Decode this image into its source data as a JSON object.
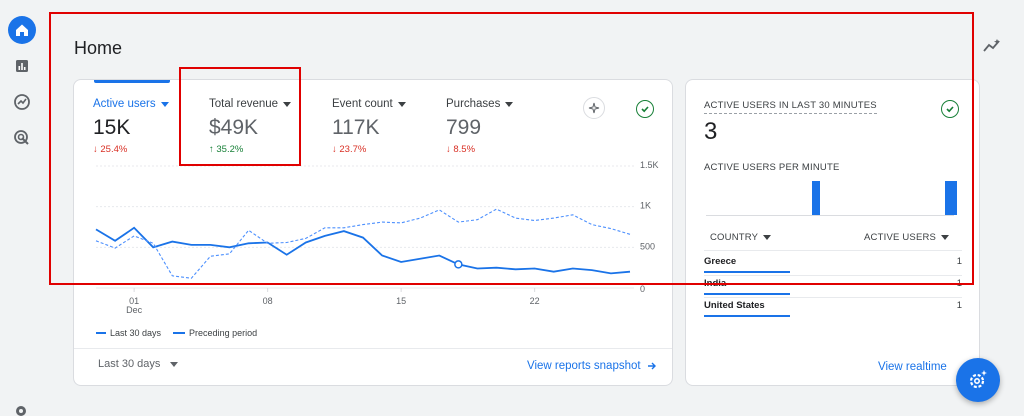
{
  "page": {
    "title": "Home"
  },
  "metrics": [
    {
      "label": "Active users",
      "value": "15K",
      "change": "↓ 25.4%",
      "direction": "down"
    },
    {
      "label": "Total revenue",
      "value": "$49K",
      "change": "↑ 35.2%",
      "direction": "up"
    },
    {
      "label": "Event count",
      "value": "117K",
      "change": "↓ 23.7%",
      "direction": "down"
    },
    {
      "label": "Purchases",
      "value": "799",
      "change": "↓ 8.5%",
      "direction": "down"
    }
  ],
  "chart_data": {
    "type": "line",
    "x_tick_labels": [
      "01\nDec",
      "08",
      "15",
      "22"
    ],
    "x": [
      29,
      30,
      1,
      2,
      3,
      4,
      5,
      6,
      7,
      8,
      9,
      10,
      11,
      12,
      13,
      14,
      15,
      16,
      17,
      18,
      19,
      20,
      21,
      22,
      23,
      24,
      25,
      26,
      27
    ],
    "y_tick_labels": [
      "0",
      "500",
      "1K",
      "1.5K"
    ],
    "ylim": [
      0,
      1500
    ],
    "series": [
      {
        "name": "Last 30 days",
        "style": "solid",
        "values": [
          720,
          580,
          740,
          500,
          570,
          530,
          530,
          500,
          550,
          560,
          410,
          560,
          640,
          700,
          620,
          400,
          320,
          360,
          400,
          290,
          240,
          250,
          230,
          240,
          200,
          240,
          220,
          180,
          200
        ]
      },
      {
        "name": "Preceding period",
        "style": "dashed",
        "values": [
          580,
          490,
          640,
          550,
          150,
          120,
          390,
          420,
          710,
          550,
          560,
          610,
          740,
          740,
          780,
          810,
          800,
          860,
          960,
          810,
          840,
          970,
          860,
          830,
          860,
          900,
          780,
          730,
          660
        ]
      }
    ],
    "highlight_point_index": 19,
    "legend": "bottom-left",
    "grid": true
  },
  "footer": {
    "range_label": "Last 30 days",
    "view_reports": "View reports snapshot"
  },
  "realtime": {
    "title": "ACTIVE USERS IN LAST 30 MINUTES",
    "value": "3",
    "per_minute_label": "ACTIVE USERS PER MINUTE",
    "per_minute_values": [
      0,
      0,
      0,
      0,
      0,
      0,
      0,
      0,
      0,
      0,
      0,
      0,
      0,
      0,
      0,
      0,
      0,
      0,
      0,
      0,
      0,
      0,
      0,
      1,
      0,
      0,
      0,
      0,
      0,
      0,
      0,
      0,
      0,
      0,
      0,
      0,
      0,
      0,
      0,
      0,
      0,
      0,
      0,
      0,
      0,
      0,
      0,
      0,
      0,
      0,
      0,
      0,
      1,
      1
    ],
    "col_country": "COUNTRY",
    "col_users": "ACTIVE USERS",
    "rows": [
      {
        "country": "Greece",
        "users": "1"
      },
      {
        "country": "India",
        "users": "1"
      },
      {
        "country": "United States",
        "users": "1"
      }
    ],
    "view_link": "View realtime"
  },
  "colors": {
    "accent": "#1a73e8",
    "down": "#d93025",
    "up": "#188038",
    "highlight": "#e00000"
  }
}
